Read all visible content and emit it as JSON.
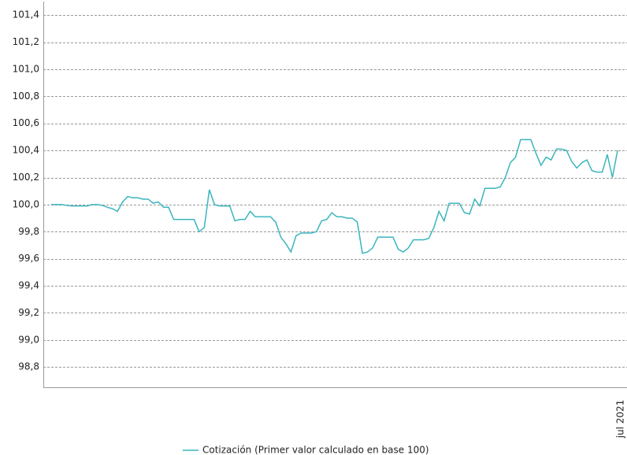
{
  "chart_data": {
    "type": "line",
    "categories": [
      null,
      null,
      null,
      null,
      null,
      null,
      null,
      null,
      null,
      null,
      null,
      null,
      null,
      null,
      null,
      null,
      null,
      null,
      null,
      null,
      null,
      null,
      null,
      null,
      null,
      null,
      null,
      null,
      null,
      null,
      null,
      null,
      null,
      null,
      null,
      null,
      null,
      null,
      null,
      null,
      null,
      null,
      null,
      null,
      null,
      null,
      null,
      null,
      null,
      null,
      null,
      null,
      null,
      null,
      null,
      null,
      null,
      null,
      null,
      null,
      null,
      null,
      null,
      null,
      null,
      null,
      null,
      null,
      null,
      null,
      null,
      null,
      null,
      null,
      null,
      null,
      null,
      null,
      null,
      null,
      null,
      null,
      null,
      null,
      null,
      null,
      null,
      null,
      null,
      null,
      null,
      null,
      null,
      null,
      null,
      null,
      null,
      null,
      null,
      null,
      null,
      null,
      null,
      null,
      null,
      null,
      null,
      null,
      null,
      null,
      null,
      "jul 2021"
    ],
    "series": [
      {
        "name": "Cotización (Primer valor calculado en base 100)",
        "color": "#3ab5bd",
        "values": [
          100.0,
          100.0,
          100.0,
          99.995,
          99.99,
          99.99,
          99.99,
          99.99,
          100.0,
          100.0,
          99.995,
          99.98,
          99.97,
          99.95,
          100.02,
          100.06,
          100.05,
          100.05,
          100.04,
          100.04,
          100.01,
          100.02,
          99.98,
          99.98,
          99.89,
          99.89,
          99.89,
          99.89,
          99.89,
          99.8,
          99.83,
          100.11,
          100.0,
          99.99,
          99.99,
          99.99,
          99.88,
          99.89,
          99.89,
          99.95,
          99.91,
          99.91,
          99.91,
          99.91,
          99.87,
          99.76,
          99.71,
          99.65,
          99.77,
          99.79,
          99.79,
          99.79,
          99.8,
          99.88,
          99.89,
          99.94,
          99.91,
          99.91,
          99.9,
          99.9,
          99.87,
          99.64,
          99.65,
          99.68,
          99.76,
          99.76,
          99.76,
          99.76,
          99.67,
          99.65,
          99.68,
          99.74,
          99.74,
          99.74,
          99.75,
          99.83,
          99.95,
          99.88,
          100.01,
          100.01,
          100.01,
          99.94,
          99.93,
          100.04,
          99.99,
          100.12,
          100.12,
          100.12,
          100.13,
          100.2,
          100.31,
          100.35,
          100.48,
          100.48,
          100.48,
          100.38,
          100.29,
          100.35,
          100.33,
          100.41,
          100.41,
          100.4,
          100.32,
          100.27,
          100.31,
          100.33,
          100.25,
          100.24,
          100.24,
          100.37,
          100.2,
          100.4
        ]
      }
    ],
    "ylim": [
      98.65,
      101.5
    ],
    "yticks": [
      {
        "value": 98.8,
        "label": "98,8"
      },
      {
        "value": 99.0,
        "label": "99,0"
      },
      {
        "value": 99.2,
        "label": "99,2"
      },
      {
        "value": 99.4,
        "label": "99,4"
      },
      {
        "value": 99.6,
        "label": "99,6"
      },
      {
        "value": 99.8,
        "label": "99,8"
      },
      {
        "value": 100.0,
        "label": "100,0"
      },
      {
        "value": 100.2,
        "label": "100,2"
      },
      {
        "value": 100.4,
        "label": "100,4"
      },
      {
        "value": 100.6,
        "label": "100,6"
      },
      {
        "value": 100.8,
        "label": "100,8"
      },
      {
        "value": 101.0,
        "label": "101,0"
      },
      {
        "value": 101.2,
        "label": "101,2"
      },
      {
        "value": 101.4,
        "label": "101,4"
      }
    ],
    "grid": true,
    "legend": "bottom"
  }
}
